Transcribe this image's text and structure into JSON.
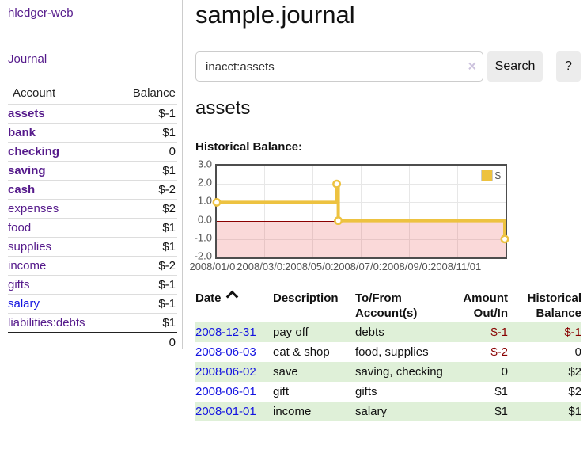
{
  "colors": {
    "link_purple": "#551a8b",
    "link_blue": "#1414e0",
    "negative_strong": "#880000",
    "negative_soft": "#b06565",
    "row_green": "#dff0d8",
    "series_gold": "#edc240",
    "negative_region_pink": "#f9d9d9",
    "zero_line_red": "#8b0000"
  },
  "sidebar": {
    "app_title": "hledger-web",
    "nav": {
      "journal": "Journal"
    },
    "table": {
      "account_header": "Account",
      "balance_header": "Balance",
      "accounts": [
        {
          "name": "assets",
          "balance": "$-1"
        },
        {
          "name": "bank",
          "balance": "$1"
        },
        {
          "name": "checking",
          "balance": "0"
        },
        {
          "name": "saving",
          "balance": "$1"
        },
        {
          "name": "cash",
          "balance": "$-2"
        },
        {
          "name": "expenses",
          "balance": "$2"
        },
        {
          "name": "food",
          "balance": "$1"
        },
        {
          "name": "supplies",
          "balance": "$1"
        },
        {
          "name": "income",
          "balance": "$-2"
        },
        {
          "name": "gifts",
          "balance": "$-1"
        },
        {
          "name": "salary",
          "balance": "$-1"
        },
        {
          "name": "liabilities:debts",
          "balance": "$1"
        }
      ],
      "total": "0"
    }
  },
  "header": {
    "title": "sample.journal"
  },
  "search": {
    "value": "inacct:assets",
    "clear_icon": "×",
    "button": "Search",
    "help_button": "?"
  },
  "account_page": {
    "title": "assets",
    "chart_label": "Historical Balance:"
  },
  "chart_data": {
    "type": "line",
    "style": "steps-with-markers",
    "title": "Historical Balance",
    "legend": "$",
    "legend_position": "top-right",
    "grid": true,
    "ylim": [
      -2,
      3
    ],
    "yticks": [
      "3.0",
      "2.0",
      "1.0",
      "0.0",
      "-1.0",
      "-2.0"
    ],
    "ytick_values": [
      3,
      2,
      1,
      0,
      -1,
      -2
    ],
    "xlim": [
      "2008-01-01",
      "2009-01-01"
    ],
    "xticks": [
      {
        "label": "2008/01/01",
        "date": "2008-01-01"
      },
      {
        "label": "2008/03/01",
        "date": "2008-03-01"
      },
      {
        "label": "2008/05/01",
        "date": "2008-05-01"
      },
      {
        "label": "2008/07/01",
        "date": "2008-07-01"
      },
      {
        "label": "2008/09/01",
        "date": "2008-09-01"
      },
      {
        "label": "2008/11/01",
        "date": "2008-11-01"
      }
    ],
    "series": [
      {
        "name": "$",
        "color": "#edc240",
        "points": [
          [
            "2008-01-01",
            1
          ],
          [
            "2008-06-01",
            2
          ],
          [
            "2008-06-03",
            0
          ],
          [
            "2008-12-31",
            -1
          ]
        ]
      }
    ],
    "negative_region": {
      "below": 0,
      "color": "#f9d9d9"
    },
    "zero_line_color": "#8b0000"
  },
  "register": {
    "columns": [
      "Date",
      "Description",
      "To/From Account(s)",
      "Amount Out/In",
      "Historical Balance"
    ],
    "rows": [
      {
        "date": "2008-12-31",
        "description": "pay off",
        "accounts": "debts",
        "amount": "$-1",
        "balance": "$-1"
      },
      {
        "date": "2008-06-03",
        "description": "eat & shop",
        "accounts": "food, supplies",
        "amount": "$-2",
        "balance": "0"
      },
      {
        "date": "2008-06-02",
        "description": "save",
        "accounts": "saving, checking",
        "amount": "0",
        "balance": "$2"
      },
      {
        "date": "2008-06-01",
        "description": "gift",
        "accounts": "gifts",
        "amount": "$1",
        "balance": "$2"
      },
      {
        "date": "2008-01-01",
        "description": "income",
        "accounts": "salary",
        "amount": "$1",
        "balance": "$1"
      }
    ]
  }
}
